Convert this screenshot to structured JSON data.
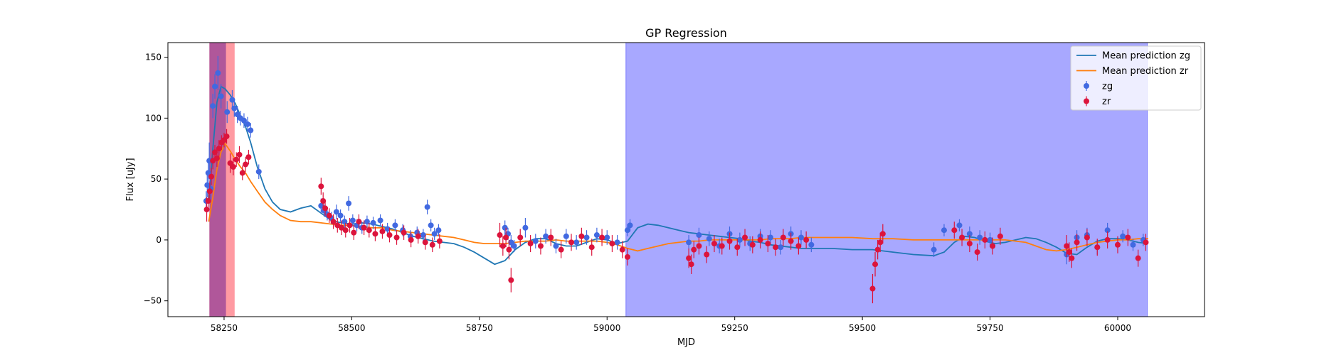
{
  "chart_data": {
    "type": "scatter",
    "title": "GP Regression",
    "xlabel": "MJD",
    "ylabel": "Flux [uJy]",
    "xlim": [
      58140,
      60170
    ],
    "ylim": [
      -63,
      162
    ],
    "xticks": [
      58250,
      58500,
      58750,
      59000,
      59250,
      59500,
      59750,
      60000
    ],
    "yticks": [
      -50,
      0,
      50,
      100,
      150
    ],
    "shaded_regions": [
      {
        "x0": 58222,
        "x1": 58270,
        "color": "#ff9aa2"
      },
      {
        "x0": 58222,
        "x1": 58253,
        "color": "#b0579a"
      },
      {
        "x0": 59037,
        "x1": 60058,
        "color": "#a8a8ff"
      }
    ],
    "series": [
      {
        "name": "Mean prediction zg",
        "kind": "line",
        "color": "#1f77b4",
        "x": [
          58220,
          58228,
          58236,
          58244,
          58252,
          58262,
          58272,
          58282,
          58292,
          58302,
          58315,
          58330,
          58345,
          58360,
          58380,
          58400,
          58420,
          58440,
          58460,
          58480,
          58500,
          58520,
          58540,
          58560,
          58580,
          58600,
          58620,
          58640,
          58660,
          58680,
          58700,
          58720,
          58740,
          58760,
          58780,
          58800,
          58820,
          58840,
          58860,
          58880,
          58900,
          58920,
          58940,
          58960,
          58980,
          59000,
          59020,
          59040,
          59060,
          59080,
          59100,
          59120,
          59140,
          59160,
          59180,
          59200,
          59220,
          59240,
          59260,
          59280,
          59300,
          59320,
          59340,
          59360,
          59380,
          59400,
          59440,
          59480,
          59520,
          59560,
          59600,
          59640,
          59660,
          59680,
          59700,
          59720,
          59740,
          59760,
          59780,
          59800,
          59820,
          59840,
          59860,
          59880,
          59900,
          59920,
          59940,
          59960,
          59980,
          60000,
          60020,
          60040,
          60060
        ],
        "y": [
          30,
          75,
          113,
          126,
          124,
          119,
          112,
          102,
          93,
          80,
          60,
          42,
          31,
          25,
          23,
          26,
          28,
          22,
          16,
          14,
          13,
          14,
          13,
          11,
          9,
          6,
          3,
          1,
          -1,
          -2,
          -3,
          -6,
          -10,
          -15,
          -20,
          -17,
          -8,
          -2,
          1,
          1,
          -3,
          -5,
          -5,
          -2,
          1,
          0,
          -3,
          -1,
          10,
          13,
          12,
          10,
          8,
          6,
          5,
          4,
          3,
          2,
          1,
          -1,
          -2,
          -4,
          -5,
          -6,
          -7,
          -7,
          -7,
          -8,
          -8,
          -10,
          -12,
          -13,
          -10,
          -2,
          3,
          2,
          -1,
          -3,
          -2,
          0,
          2,
          1,
          -2,
          -6,
          -11,
          -12,
          -6,
          -1,
          1,
          1,
          0,
          -2,
          -3
        ]
      },
      {
        "name": "Mean prediction zr",
        "kind": "line",
        "color": "#ff7f0e",
        "x": [
          58220,
          58228,
          58236,
          58244,
          58252,
          58262,
          58272,
          58282,
          58292,
          58302,
          58315,
          58330,
          58345,
          58360,
          58380,
          58400,
          58420,
          58440,
          58460,
          58480,
          58500,
          58520,
          58540,
          58560,
          58580,
          58600,
          58620,
          58640,
          58660,
          58680,
          58700,
          58720,
          58740,
          58760,
          58780,
          58800,
          58820,
          58840,
          58860,
          58880,
          58900,
          58920,
          58940,
          58960,
          58980,
          59000,
          59020,
          59040,
          59060,
          59080,
          59100,
          59120,
          59140,
          59160,
          59180,
          59200,
          59220,
          59240,
          59260,
          59280,
          59300,
          59320,
          59340,
          59360,
          59380,
          59400,
          59440,
          59480,
          59520,
          59560,
          59600,
          59640,
          59660,
          59680,
          59700,
          59720,
          59740,
          59760,
          59780,
          59800,
          59820,
          59840,
          59860,
          59880,
          59900,
          59920,
          59940,
          59960,
          59980,
          60000,
          60020,
          60040,
          60060
        ],
        "y": [
          15,
          35,
          58,
          72,
          79,
          73,
          66,
          60,
          55,
          48,
          40,
          31,
          25,
          20,
          16,
          15,
          15,
          14,
          13,
          12,
          12,
          11,
          10,
          10,
          8,
          7,
          6,
          5,
          4,
          3,
          2,
          0,
          -2,
          -3,
          -3,
          -3,
          -2,
          -1,
          -1,
          -1,
          0,
          -1,
          -1,
          -1,
          -1,
          -2,
          -4,
          -7,
          -9,
          -7,
          -5,
          -3,
          -2,
          -1,
          -1,
          0,
          0,
          0,
          0,
          0,
          0,
          1,
          1,
          1,
          2,
          2,
          2,
          2,
          1,
          1,
          0,
          0,
          0,
          0,
          0,
          0,
          0,
          0,
          0,
          -1,
          -2,
          -5,
          -8,
          -9,
          -8,
          -6,
          -4,
          -2,
          -1,
          0,
          0,
          1,
          1
        ]
      },
      {
        "name": "zg",
        "kind": "scatter",
        "color": "#4169e1",
        "x": [
          58215,
          58217,
          58219,
          58221,
          58224,
          58228,
          58232,
          58238,
          58244,
          58256,
          58266,
          58270,
          58276,
          58282,
          58289,
          58296,
          58302,
          58318,
          58440,
          58446,
          58452,
          58460,
          58470,
          58478,
          58486,
          58494,
          58502,
          58510,
          58520,
          58530,
          58542,
          58556,
          58570,
          58585,
          58600,
          58615,
          58628,
          58640,
          58648,
          58655,
          58662,
          58670,
          58800,
          58806,
          58812,
          58818,
          58840,
          58860,
          58880,
          58900,
          58920,
          58940,
          58960,
          58980,
          59000,
          59020,
          59040,
          59045,
          59160,
          59180,
          59200,
          59220,
          59240,
          59260,
          59280,
          59300,
          59320,
          59340,
          59360,
          59380,
          59400,
          59640,
          59660,
          59690,
          59710,
          59730,
          59750,
          59900,
          59920,
          59940,
          59960,
          59980,
          60010,
          60030,
          60050
        ],
        "y": [
          32,
          45,
          55,
          65,
          42,
          110,
          126,
          137,
          118,
          105,
          115,
          108,
          103,
          100,
          98,
          95,
          90,
          56,
          28,
          24,
          21,
          18,
          23,
          20,
          15,
          30,
          16,
          12,
          10,
          15,
          14,
          16,
          9,
          12,
          8,
          3,
          6,
          4,
          27,
          12,
          5,
          8,
          10,
          5,
          -2,
          -5,
          10,
          -1,
          3,
          -5,
          3,
          -2,
          2,
          4,
          2,
          -2,
          8,
          12,
          -2,
          4,
          1,
          -5,
          5,
          0,
          -3,
          3,
          2,
          -6,
          5,
          2,
          -4,
          -8,
          8,
          12,
          5,
          2,
          0,
          -12,
          2,
          4,
          -6,
          8,
          3,
          -4,
          0
        ],
        "yerr": [
          8,
          10,
          12,
          15,
          9,
          10,
          10,
          14,
          10,
          9,
          8,
          7,
          7,
          6,
          6,
          6,
          6,
          6,
          6,
          5,
          5,
          5,
          6,
          5,
          5,
          6,
          5,
          5,
          5,
          5,
          5,
          5,
          5,
          5,
          5,
          5,
          5,
          5,
          6,
          5,
          5,
          5,
          6,
          5,
          6,
          5,
          8,
          6,
          6,
          6,
          6,
          6,
          6,
          6,
          6,
          6,
          5,
          5,
          6,
          6,
          6,
          6,
          6,
          6,
          6,
          6,
          6,
          6,
          6,
          6,
          6,
          6,
          5,
          5,
          6,
          6,
          6,
          8,
          6,
          6,
          6,
          6,
          5,
          5,
          5
        ]
      },
      {
        "name": "zr",
        "kind": "scatter",
        "color": "#dc143c",
        "x": [
          58216,
          58219,
          58222,
          58225,
          58228,
          58232,
          58236,
          58240,
          58245,
          58250,
          58255,
          58262,
          58268,
          58274,
          58280,
          58286,
          58292,
          58298,
          58440,
          58444,
          58448,
          58456,
          58464,
          58472,
          58480,
          58488,
          58496,
          58504,
          58514,
          58524,
          58534,
          58546,
          58560,
          58574,
          58588,
          58602,
          58616,
          58630,
          58644,
          58658,
          58672,
          58790,
          58796,
          58802,
          58808,
          58812,
          58830,
          58850,
          58870,
          58890,
          58910,
          58930,
          58950,
          58970,
          58990,
          59010,
          59030,
          59040,
          59160,
          59165,
          59170,
          59180,
          59195,
          59210,
          59225,
          59240,
          59255,
          59270,
          59285,
          59300,
          59315,
          59330,
          59345,
          59360,
          59375,
          59390,
          59520,
          59525,
          59530,
          59535,
          59540,
          59680,
          59695,
          59710,
          59725,
          59740,
          59755,
          59770,
          59900,
          59905,
          59910,
          59920,
          59940,
          59960,
          59980,
          60000,
          60020,
          60040,
          60055
        ],
        "y": [
          25,
          32,
          40,
          52,
          65,
          72,
          67,
          75,
          80,
          82,
          85,
          63,
          60,
          66,
          70,
          55,
          62,
          68,
          44,
          32,
          26,
          20,
          15,
          12,
          10,
          8,
          12,
          6,
          15,
          10,
          8,
          5,
          7,
          4,
          2,
          6,
          0,
          3,
          -2,
          -4,
          -1,
          4,
          -5,
          2,
          -8,
          -33,
          2,
          -3,
          -5,
          2,
          -8,
          -2,
          3,
          -6,
          2,
          -3,
          -8,
          -14,
          -15,
          -20,
          -8,
          -5,
          -12,
          -3,
          -5,
          -1,
          -6,
          2,
          -4,
          0,
          -3,
          -6,
          2,
          -1,
          -5,
          0,
          -40,
          -20,
          -8,
          -2,
          5,
          8,
          2,
          -3,
          -10,
          0,
          -5,
          3,
          -5,
          -10,
          -15,
          -2,
          2,
          -6,
          0,
          -4,
          2,
          -15,
          -2
        ],
        "yerr": [
          10,
          8,
          8,
          7,
          7,
          6,
          7,
          7,
          6,
          6,
          6,
          8,
          7,
          6,
          7,
          6,
          6,
          6,
          7,
          7,
          6,
          6,
          6,
          6,
          6,
          6,
          6,
          6,
          6,
          6,
          6,
          6,
          6,
          6,
          6,
          6,
          6,
          6,
          6,
          6,
          6,
          10,
          8,
          8,
          8,
          10,
          7,
          7,
          7,
          7,
          7,
          7,
          7,
          7,
          7,
          7,
          7,
          7,
          8,
          8,
          7,
          7,
          7,
          7,
          7,
          7,
          7,
          7,
          7,
          7,
          7,
          7,
          7,
          7,
          7,
          7,
          12,
          10,
          8,
          8,
          8,
          7,
          7,
          7,
          7,
          7,
          7,
          7,
          9,
          8,
          8,
          7,
          7,
          7,
          7,
          7,
          7,
          7,
          7
        ]
      }
    ],
    "legend": {
      "placement": "top-right",
      "entries": [
        "Mean prediction zg",
        "Mean prediction zr",
        "zg",
        "zr"
      ]
    }
  }
}
